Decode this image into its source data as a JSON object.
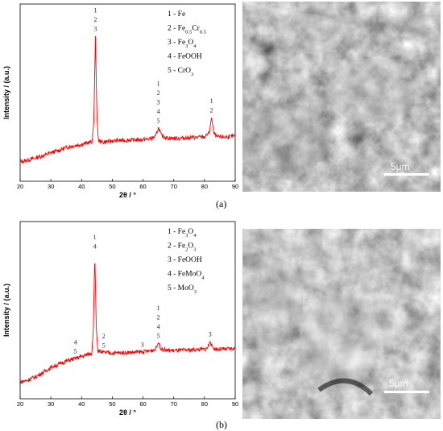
{
  "figure": {
    "panels": [
      {
        "label": "(a)",
        "legend": [
          {
            "n": "1 - ",
            "parts": [
              [
                "Fe",
                ""
              ]
            ]
          },
          {
            "n": "2 - ",
            "parts": [
              [
                "Fe",
                ""
              ],
              [
                "0.5",
                "sub"
              ],
              [
                "Cr",
                ""
              ],
              [
                "0.5",
                "sub"
              ]
            ]
          },
          {
            "n": "3 - ",
            "parts": [
              [
                "Fe",
                ""
              ],
              [
                "3",
                "sub"
              ],
              [
                "O",
                ""
              ],
              [
                "4",
                "sub"
              ]
            ]
          },
          {
            "n": "4 - ",
            "parts": [
              [
                "FeOOH",
                ""
              ]
            ]
          },
          {
            "n": "5 - ",
            "parts": [
              [
                "CrO",
                ""
              ],
              [
                "3",
                "sub"
              ]
            ]
          }
        ],
        "scale_bar": "5μm"
      },
      {
        "label": "(b)",
        "legend": [
          {
            "n": "1 - ",
            "parts": [
              [
                "Fe",
                ""
              ],
              [
                "3",
                "sub"
              ],
              [
                "O",
                ""
              ],
              [
                "4",
                "sub"
              ]
            ]
          },
          {
            "n": "2 - ",
            "parts": [
              [
                "Fe",
                ""
              ],
              [
                "2",
                "sub"
              ],
              [
                "O",
                ""
              ],
              [
                "3",
                "sub"
              ]
            ]
          },
          {
            "n": "3 - ",
            "parts": [
              [
                "FeOOH",
                ""
              ]
            ]
          },
          {
            "n": "4 - ",
            "parts": [
              [
                "FeMoO",
                ""
              ],
              [
                "4",
                "sub"
              ]
            ]
          },
          {
            "n": "5 - ",
            "parts": [
              [
                "MoO",
                ""
              ],
              [
                "3",
                "sub"
              ]
            ]
          }
        ],
        "scale_bar": "5μm"
      }
    ]
  },
  "chart_data": [
    {
      "type": "line",
      "xlabel": "2θ / °",
      "ylabel": "Intensity / (a.u.)",
      "xlim": [
        20,
        90
      ],
      "xticks": [
        "20",
        "30",
        "40",
        "50",
        "60",
        "70",
        "80",
        "90"
      ],
      "color": "#ff0000",
      "series": [
        {
          "x": [
            20,
            22,
            25,
            28,
            30,
            33,
            35,
            38,
            40,
            42,
            43.5,
            44.0,
            44.5,
            45.0,
            45.5,
            47,
            50,
            55,
            60,
            62,
            64,
            65,
            66,
            68,
            72,
            76,
            80,
            81.5,
            82.3,
            83,
            84,
            87,
            90
          ],
          "y": [
            4,
            5,
            7,
            9,
            11,
            13,
            15,
            16.5,
            17.5,
            18.5,
            19.5,
            36,
            100,
            38,
            20,
            19,
            20,
            20.5,
            21,
            21.5,
            23,
            30,
            24,
            22,
            22,
            22.5,
            23,
            26,
            38,
            26,
            23,
            23,
            23.5
          ]
        }
      ],
      "peaks": [
        {
          "x": 44.5,
          "labels": [
            "1",
            "2",
            "3"
          ]
        },
        {
          "x": 65.0,
          "labels": [
            "1",
            "2",
            "3",
            "4",
            "5"
          ]
        },
        {
          "x": 82.3,
          "labels": [
            "1",
            "2"
          ]
        }
      ]
    },
    {
      "type": "line",
      "xlabel": "2θ / °",
      "ylabel": "Intensity / (a.u.)",
      "xlim": [
        20,
        90
      ],
      "xticks": [
        "20",
        "30",
        "40",
        "50",
        "60",
        "70",
        "80",
        "90"
      ],
      "color": "#ff0000",
      "series": [
        {
          "x": [
            20,
            22,
            25,
            28,
            30,
            33,
            35,
            38,
            40,
            42,
            43.3,
            43.8,
            44.3,
            44.8,
            45.3,
            47,
            50,
            55,
            60,
            62,
            64,
            65,
            66,
            68,
            72,
            76,
            80,
            81,
            81.8,
            82.6,
            84,
            87,
            90
          ],
          "y": [
            2,
            3,
            6,
            10,
            13,
            16,
            18,
            20,
            21.5,
            23,
            24,
            40,
            100,
            42,
            26,
            24.5,
            24,
            24.5,
            25,
            25.5,
            27,
            32,
            27,
            26,
            26,
            26.5,
            27,
            28,
            33,
            28,
            27,
            27,
            27.5
          ]
        }
      ],
      "peaks": [
        {
          "x": 38.0,
          "labels": [
            "4",
            "5"
          ]
        },
        {
          "x": 44.3,
          "labels": [
            "1",
            "4"
          ]
        },
        {
          "x": 47.2,
          "labels": [
            "2",
            "5"
          ]
        },
        {
          "x": 59.8,
          "labels": [
            "3"
          ]
        },
        {
          "x": 65.0,
          "labels": [
            "1",
            "2",
            "4",
            "5"
          ]
        },
        {
          "x": 81.8,
          "labels": [
            "3"
          ]
        }
      ]
    }
  ]
}
